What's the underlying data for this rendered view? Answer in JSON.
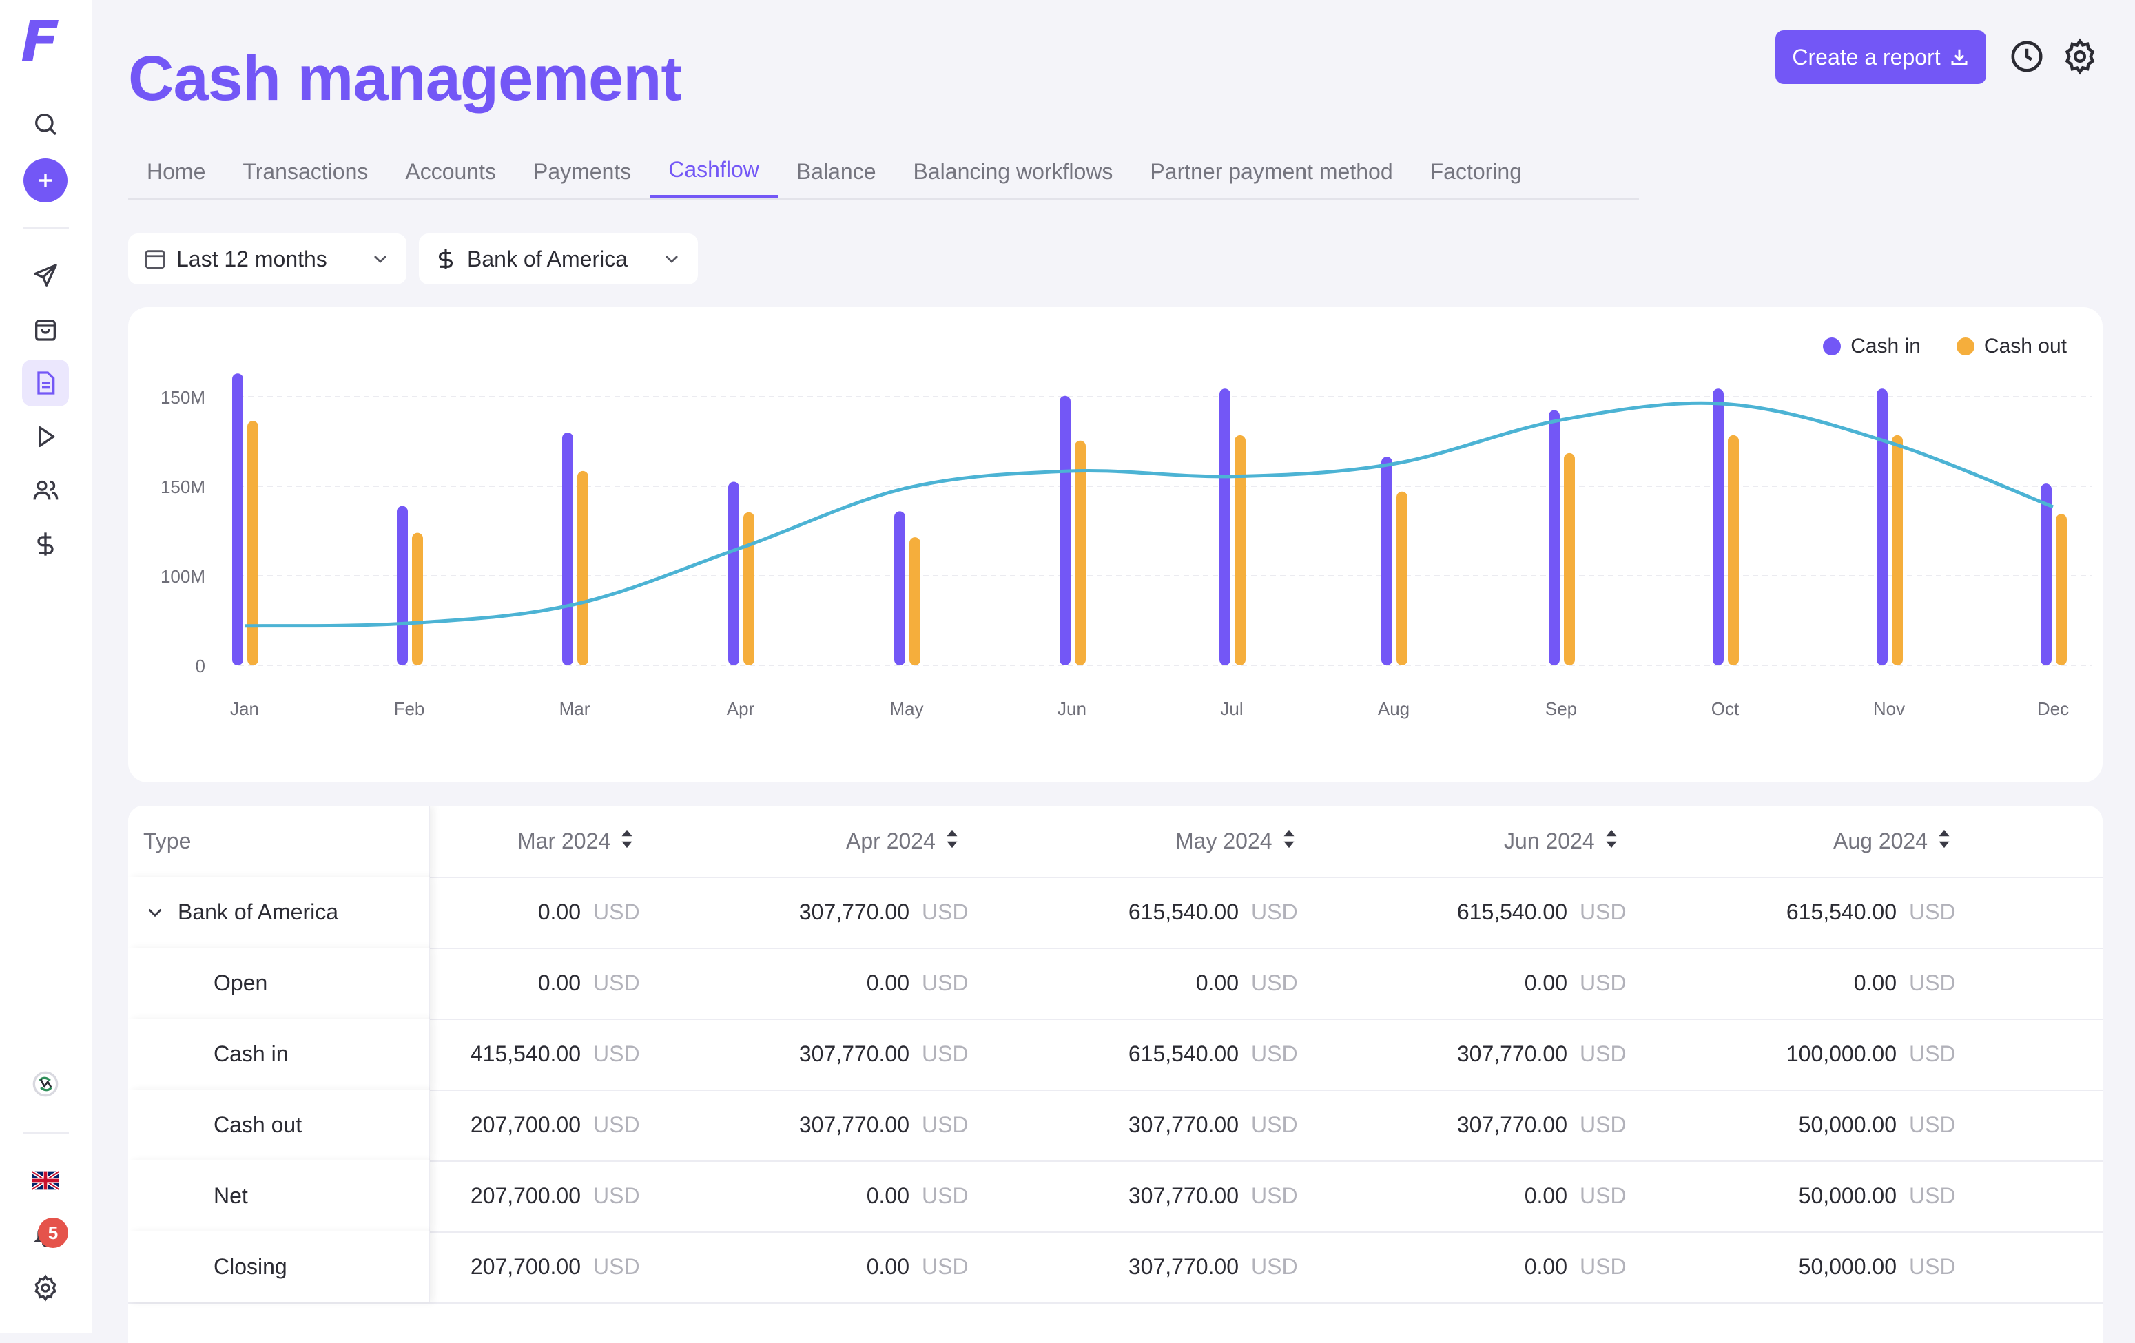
{
  "app": {
    "logo": "F"
  },
  "sidebar": {
    "icons": [
      "search-icon",
      "plus-icon",
      "send-icon",
      "bag-icon",
      "document-icon",
      "play-icon",
      "users-icon",
      "dollar-icon",
      "integration-icon",
      "uk-flag-icon",
      "bell-icon",
      "gear-icon"
    ],
    "notifications": "5"
  },
  "header": {
    "title": "Cash management",
    "create_button": "Create a report"
  },
  "tabs": [
    "Home",
    "Transactions",
    "Accounts",
    "Payments",
    "Cashflow",
    "Balance",
    "Balancing workflows",
    "Partner payment method",
    "Factoring"
  ],
  "active_tab": "Cashflow",
  "filters": {
    "period": "Last 12 months",
    "account": "Bank of America"
  },
  "colors": {
    "accent": "#7357f6",
    "cash_in": "#7357f6",
    "cash_out": "#f5ae3c",
    "line": "#4cb3d4"
  },
  "chart_data": {
    "type": "bar",
    "categories": [
      "Jan",
      "Feb",
      "Mar",
      "Apr",
      "May",
      "Jun",
      "Jul",
      "Aug",
      "Sep",
      "Oct",
      "Nov",
      "Dec"
    ],
    "y_tick_labels": [
      "0",
      "100M",
      "150M",
      "150M"
    ],
    "series": [
      {
        "name": "Cash in",
        "values": [
          3.26,
          1.78,
          2.6,
          2.05,
          1.72,
          3.01,
          3.09,
          2.33,
          2.85,
          3.09,
          3.09,
          2.03
        ]
      },
      {
        "name": "Cash out",
        "values": [
          2.73,
          1.48,
          2.17,
          1.71,
          1.43,
          2.51,
          2.57,
          1.94,
          2.37,
          2.57,
          2.57,
          1.69
        ]
      }
    ],
    "trend_line": [
      0.44,
      0.47,
      0.68,
      1.31,
      1.98,
      2.17,
      2.11,
      2.25,
      2.74,
      2.92,
      2.49,
      1.77
    ],
    "legend": [
      "Cash in",
      "Cash out"
    ],
    "legend_position": "top-right",
    "grid": true
  },
  "table": {
    "type_header": "Type",
    "columns": [
      "Mar 2024",
      "Apr 2024",
      "May 2024",
      "Jun 2024",
      "Aug 2024"
    ],
    "currency": "USD",
    "rows": [
      {
        "label": "Bank of America",
        "group": true,
        "values": [
          "0.00",
          "307,770.00",
          "615,540.00",
          "615,540.00",
          "615,540.00"
        ]
      },
      {
        "label": "Open",
        "values": [
          "0.00",
          "0.00",
          "0.00",
          "0.00",
          "0.00"
        ]
      },
      {
        "label": "Cash in",
        "values": [
          "415,540.00",
          "307,770.00",
          "615,540.00",
          "307,770.00",
          "100,000.00"
        ]
      },
      {
        "label": "Cash out",
        "values": [
          "207,700.00",
          "307,770.00",
          "307,770.00",
          "307,770.00",
          "50,000.00"
        ]
      },
      {
        "label": "Net",
        "values": [
          "207,700.00",
          "0.00",
          "307,770.00",
          "0.00",
          "50,000.00"
        ]
      },
      {
        "label": "Closing",
        "values": [
          "207,700.00",
          "0.00",
          "307,770.00",
          "0.00",
          "50,000.00"
        ]
      }
    ]
  }
}
